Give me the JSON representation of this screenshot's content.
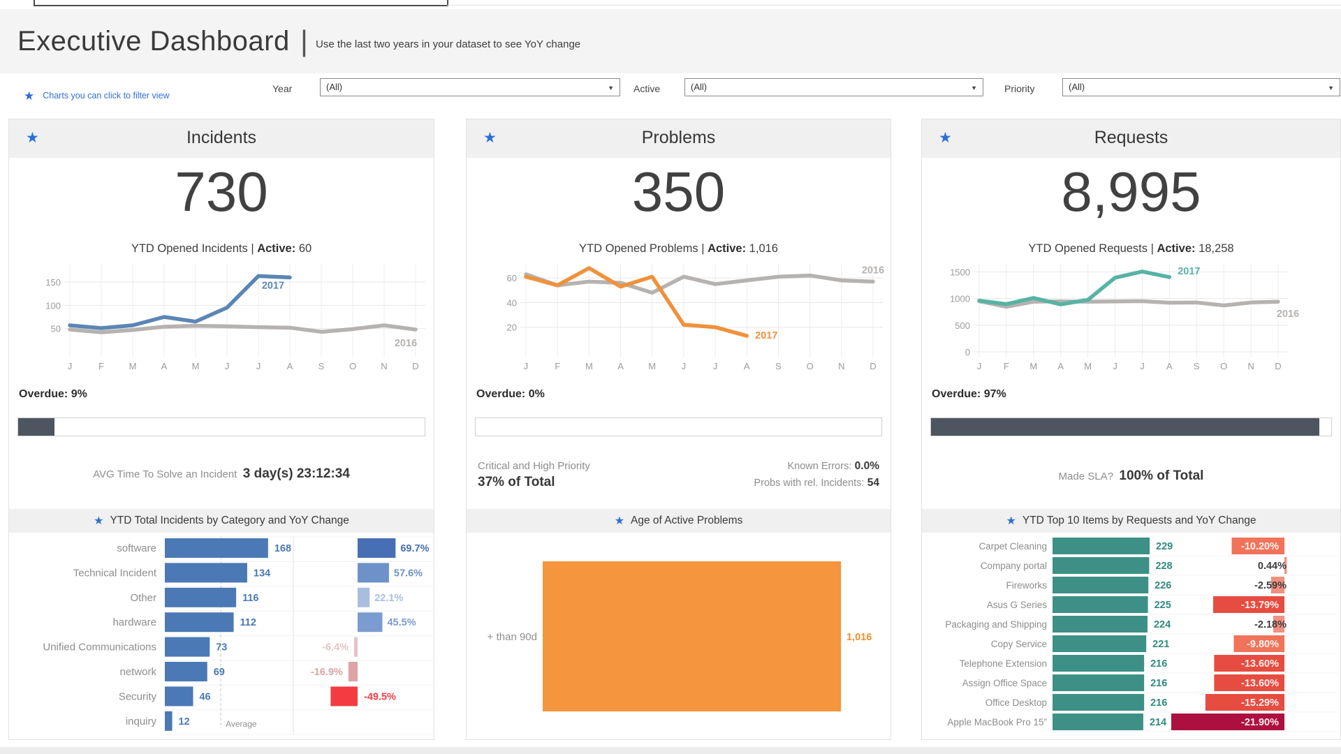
{
  "header": {
    "title": "Executive Dashboard",
    "separator": "|",
    "subtitle": "Use the last two years in your dataset to see YoY change"
  },
  "hint": {
    "icon": "star-icon",
    "text": "Charts you can click to filter view"
  },
  "filters": [
    {
      "label": "Year",
      "value": "(All)"
    },
    {
      "label": "Active",
      "value": "(All)"
    },
    {
      "label": "Priority",
      "value": "(All)"
    }
  ],
  "incidents": {
    "title": "Incidents",
    "big_number": "730",
    "subtitle": {
      "prefix": "YTD Opened Incidents | ",
      "bold": "Active:",
      "value": " 60"
    },
    "overdue": {
      "label": "Overdue:",
      "value": "9%",
      "pct": 9
    },
    "footer": {
      "prefix": "AVG Time To Solve an Incident",
      "bold": "3 day(s) 23:12:34"
    },
    "section_title": "YTD Total Incidents by Category and YoY Change"
  },
  "problems": {
    "title": "Problems",
    "big_number": "350",
    "subtitle": {
      "prefix": "YTD Opened Problems | ",
      "bold": "Active:",
      "value": " 1,016"
    },
    "overdue": {
      "label": "Overdue:",
      "value": "0%",
      "pct": 0
    },
    "stats": {
      "left_line1": "Critical and High Priority",
      "left_line2": "37% of Total",
      "right_line1_label": "Known Errors:",
      "right_line1_value": " 0.0%",
      "right_line2_label": "Probs with rel. Incidents:",
      "right_line2_value": " 54"
    },
    "section_title": "Age of Active Problems"
  },
  "requests": {
    "title": "Requests",
    "big_number": "8,995",
    "subtitle": {
      "prefix": "YTD Opened Requests | ",
      "bold": "Active:",
      "value": " 18,258"
    },
    "overdue": {
      "label": "Overdue:",
      "value": "97%",
      "pct": 97
    },
    "made_sla": {
      "label": "Made SLA?",
      "bold": "100% of Total"
    },
    "section_title": "YTD Top 10 Items by Requests and YoY Change"
  },
  "chart_data": [
    {
      "name": "incidents-monthly",
      "type": "line",
      "title": "YTD Opened Incidents",
      "x": [
        "J",
        "F",
        "M",
        "A",
        "M",
        "J",
        "J",
        "A",
        "S",
        "O",
        "N",
        "D"
      ],
      "ylim": [
        0,
        180
      ],
      "yticks": [
        50,
        100,
        150
      ],
      "series": [
        {
          "name": "2016",
          "color": "#b5b2af",
          "values": [
            48,
            42,
            47,
            54,
            56,
            55,
            53,
            52,
            43,
            49,
            57,
            48
          ],
          "label": {
            "dx": -14,
            "dy": 24
          }
        },
        {
          "name": "2017",
          "color": "#5b86b4",
          "values": [
            57,
            51,
            57,
            75,
            65,
            95,
            163,
            160
          ],
          "label": {
            "dx": -24,
            "dy": 16
          }
        }
      ]
    },
    {
      "name": "problems-monthly",
      "type": "line",
      "title": "YTD Opened Problems",
      "x": [
        "J",
        "F",
        "M",
        "A",
        "M",
        "J",
        "J",
        "A",
        "S",
        "O",
        "N",
        "D"
      ],
      "ylim": [
        0,
        68
      ],
      "yticks": [
        20,
        40,
        60
      ],
      "series": [
        {
          "name": "2016",
          "color": "#b5b2af",
          "values": [
            63,
            54,
            57,
            56,
            48,
            61,
            55,
            58,
            61,
            62,
            58,
            57
          ],
          "label": {
            "dx": 0,
            "dy": -12
          }
        },
        {
          "name": "2017",
          "color": "#f0913c",
          "values": [
            61,
            54,
            68,
            53,
            61,
            22,
            20,
            13
          ],
          "label": {
            "dx": 28,
            "dy": 4
          }
        }
      ]
    },
    {
      "name": "requests-monthly",
      "type": "line",
      "title": "YTD Opened Requests",
      "x": [
        "J",
        "F",
        "M",
        "A",
        "M",
        "J",
        "J",
        "A",
        "S",
        "O",
        "N",
        "D"
      ],
      "ylim": [
        0,
        1570
      ],
      "yticks": [
        0,
        500,
        1000,
        1500
      ],
      "series": [
        {
          "name": "2016",
          "color": "#b5b2af",
          "values": [
            950,
            845,
            940,
            945,
            940,
            945,
            950,
            920,
            925,
            870,
            925,
            940
          ],
          "label": {
            "dx": 14,
            "dy": 22
          }
        },
        {
          "name": "2017",
          "color": "#56b3a5",
          "values": [
            960,
            895,
            1010,
            890,
            975,
            1390,
            1505,
            1400
          ],
          "label": {
            "dx": 28,
            "dy": -4
          }
        }
      ]
    },
    {
      "name": "incidents-by-category",
      "type": "bar",
      "title": "YTD Total Incidents by Category and YoY Change",
      "categories": [
        "software",
        "Technical Incident",
        "Other",
        "hardware",
        "Unified Communications",
        "network",
        "Security",
        "inquiry"
      ],
      "values": [
        168,
        134,
        116,
        112,
        73,
        69,
        46,
        12
      ],
      "bar_color": "#4a79b5",
      "value_color": "#4a79b5",
      "average": 91,
      "average_label": "Average",
      "yoy": [
        {
          "label": "69.7%",
          "value": 69.7,
          "color": "#466fb5"
        },
        {
          "label": "57.6%",
          "value": 57.6,
          "color": "#6d92c9"
        },
        {
          "label": "22.1%",
          "value": 22.1,
          "color": "#a9bedf"
        },
        {
          "label": "45.5%",
          "value": 45.5,
          "color": "#7b9cd0"
        },
        {
          "label": "-6.4%",
          "value": -6.4,
          "color": "#e4c4c4"
        },
        {
          "label": "-16.9%",
          "value": -16.9,
          "color": "#dca4a4"
        },
        {
          "label": "-49.5%",
          "value": -49.5,
          "color": "#f43b41"
        },
        {
          "label": "",
          "value": null,
          "color": ""
        }
      ]
    },
    {
      "name": "age-of-active-problems",
      "type": "bar",
      "title": "Age of Active Problems",
      "categories": [
        "+ than 90d"
      ],
      "values": [
        1016
      ],
      "value_labels": [
        "1,016"
      ],
      "bar_color": "#f5953d",
      "label_color": "#ef8f2e"
    },
    {
      "name": "requests-top10",
      "type": "bar",
      "title": "YTD Top 10 Items by Requests and YoY Change",
      "bar_color": "#3d9085",
      "value_color": "#2f8a7e",
      "items": [
        {
          "label": "Carpet Cleaning",
          "value": 229,
          "yoy": -10.2,
          "yoy_label": "-10.20%",
          "yoy_color": "#f0735a"
        },
        {
          "label": "Company portal",
          "value": 228,
          "yoy": 0.44,
          "yoy_label": "0.44%",
          "yoy_color": "#f0917f"
        },
        {
          "label": "Fireworks",
          "value": 226,
          "yoy": -2.59,
          "yoy_label": "-2.59%",
          "yoy_color": "#f0917f"
        },
        {
          "label": "Asus G Series",
          "value": 225,
          "yoy": -13.79,
          "yoy_label": "-13.79%",
          "yoy_color": "#e74c40"
        },
        {
          "label": "Packaging and Shipping",
          "value": 224,
          "yoy": -2.18,
          "yoy_label": "-2.18%",
          "yoy_color": "#f0917f"
        },
        {
          "label": "Copy Service",
          "value": 221,
          "yoy": -9.8,
          "yoy_label": "-9.80%",
          "yoy_color": "#f0735a"
        },
        {
          "label": "Telephone Extension",
          "value": 216,
          "yoy": -13.6,
          "yoy_label": "-13.60%",
          "yoy_color": "#e74c40"
        },
        {
          "label": "Assign Office Space",
          "value": 216,
          "yoy": -13.6,
          "yoy_label": "-13.60%",
          "yoy_color": "#e74c40"
        },
        {
          "label": "Office Desktop",
          "value": 216,
          "yoy": -15.29,
          "yoy_label": "-15.29%",
          "yoy_color": "#e74c40"
        },
        {
          "label": "Apple MacBook Pro 15”",
          "value": 214,
          "yoy": -21.9,
          "yoy_label": "-21.90%",
          "yoy_color": "#ad1040"
        }
      ]
    }
  ]
}
